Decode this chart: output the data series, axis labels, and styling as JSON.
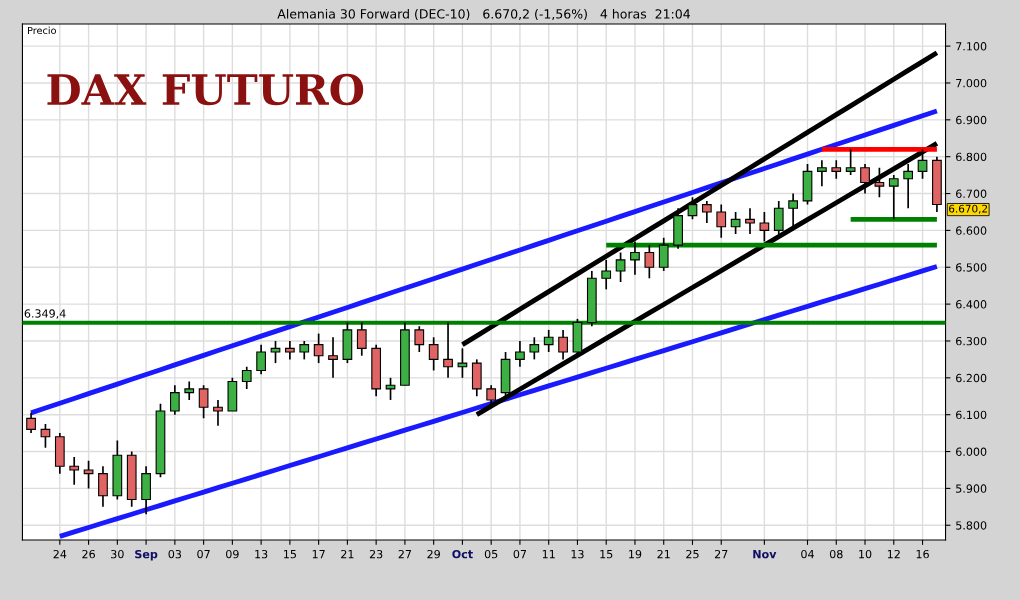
{
  "chart_data": {
    "type": "candlestick",
    "title": "Alemania 30 Forward (DEC-10)   6.670,2 (-1,56%)   4 horas  21:04",
    "ylabel": "Precio",
    "annotations": [
      "DAX FUTURO",
      "6.670,2"
    ],
    "categories": [
      null,
      null,
      "24",
      null,
      "26",
      null,
      "30",
      null,
      "Sep",
      null,
      "03",
      null,
      "07",
      null,
      "09",
      null,
      "13",
      null,
      "15",
      null,
      "17",
      null,
      "21",
      null,
      "23",
      null,
      "27",
      null,
      "29",
      null,
      "Oct",
      null,
      "05",
      null,
      "07",
      null,
      "11",
      null,
      "13",
      null,
      "15",
      null,
      "19",
      null,
      "21",
      null,
      "25",
      null,
      "27",
      null,
      null,
      "Nov",
      null,
      null,
      "04",
      null,
      "08",
      null,
      "10",
      null,
      "12",
      null,
      "16",
      null
    ],
    "ohlc": [
      [
        6090,
        6105,
        6050,
        6060
      ],
      [
        6060,
        6075,
        6010,
        6040
      ],
      [
        6040,
        6050,
        5940,
        5960
      ],
      [
        5960,
        5985,
        5910,
        5950
      ],
      [
        5950,
        5975,
        5900,
        5940
      ],
      [
        5940,
        5960,
        5850,
        5880
      ],
      [
        5880,
        6030,
        5870,
        5990
      ],
      [
        5990,
        6000,
        5850,
        5870
      ],
      [
        5870,
        5960,
        5830,
        5940
      ],
      [
        5940,
        6130,
        5930,
        6110
      ],
      [
        6110,
        6180,
        6100,
        6160
      ],
      [
        6160,
        6190,
        6140,
        6170
      ],
      [
        6170,
        6180,
        6090,
        6120
      ],
      [
        6120,
        6140,
        6070,
        6110
      ],
      [
        6110,
        6200,
        6110,
        6190
      ],
      [
        6190,
        6230,
        6170,
        6220
      ],
      [
        6220,
        6290,
        6210,
        6270
      ],
      [
        6270,
        6300,
        6240,
        6280
      ],
      [
        6280,
        6300,
        6250,
        6270
      ],
      [
        6270,
        6300,
        6250,
        6290
      ],
      [
        6290,
        6320,
        6240,
        6260
      ],
      [
        6260,
        6310,
        6200,
        6250
      ],
      [
        6250,
        6350,
        6240,
        6330
      ],
      [
        6330,
        6350,
        6260,
        6280
      ],
      [
        6280,
        6290,
        6150,
        6170
      ],
      [
        6170,
        6200,
        6140,
        6180
      ],
      [
        6180,
        6350,
        6180,
        6330
      ],
      [
        6330,
        6340,
        6270,
        6290
      ],
      [
        6290,
        6310,
        6220,
        6250
      ],
      [
        6250,
        6350,
        6200,
        6230
      ],
      [
        6230,
        6280,
        6200,
        6240
      ],
      [
        6240,
        6250,
        6150,
        6170
      ],
      [
        6170,
        6180,
        6120,
        6140
      ],
      [
        6160,
        6270,
        6150,
        6250
      ],
      [
        6250,
        6300,
        6230,
        6270
      ],
      [
        6270,
        6310,
        6250,
        6290
      ],
      [
        6290,
        6330,
        6270,
        6310
      ],
      [
        6310,
        6330,
        6250,
        6270
      ],
      [
        6270,
        6360,
        6260,
        6350
      ],
      [
        6350,
        6490,
        6340,
        6470
      ],
      [
        6470,
        6520,
        6440,
        6490
      ],
      [
        6490,
        6540,
        6460,
        6520
      ],
      [
        6520,
        6570,
        6480,
        6540
      ],
      [
        6540,
        6560,
        6470,
        6500
      ],
      [
        6500,
        6580,
        6490,
        6560
      ],
      [
        6560,
        6660,
        6550,
        6640
      ],
      [
        6640,
        6690,
        6630,
        6670
      ],
      [
        6670,
        6680,
        6620,
        6650
      ],
      [
        6650,
        6670,
        6580,
        6610
      ],
      [
        6610,
        6650,
        6590,
        6630
      ],
      [
        6630,
        6660,
        6590,
        6620
      ],
      [
        6620,
        6650,
        6570,
        6600
      ],
      [
        6600,
        6680,
        6590,
        6660
      ],
      [
        6660,
        6700,
        6600,
        6680
      ],
      [
        6680,
        6780,
        6670,
        6760
      ],
      [
        6760,
        6790,
        6720,
        6770
      ],
      [
        6770,
        6790,
        6740,
        6760
      ],
      [
        6760,
        6820,
        6750,
        6770
      ],
      [
        6770,
        6780,
        6700,
        6730
      ],
      [
        6730,
        6770,
        6690,
        6720
      ],
      [
        6720,
        6750,
        6630,
        6740
      ],
      [
        6740,
        6780,
        6660,
        6760
      ],
      [
        6760,
        6820,
        6740,
        6790
      ],
      [
        6790,
        6800,
        6650,
        6670.2
      ]
    ],
    "series": [
      {
        "type": "line",
        "color": "#1a1aff",
        "values": [
          6105,
          6118,
          6131,
          6144,
          6157,
          6170,
          6183,
          6196,
          6209,
          6222,
          6235,
          6248,
          6261,
          6274,
          6287,
          6300,
          6313,
          6326,
          6339,
          6352,
          6365,
          6378,
          6391,
          6404,
          6417,
          6430,
          6443,
          6456,
          6469,
          6482,
          6495,
          6508,
          6521,
          6534,
          6547,
          6560,
          6573,
          6586,
          6599,
          6612,
          6625,
          6638,
          6651,
          6664,
          6677,
          6690,
          6703,
          6716,
          6729,
          6742,
          6755,
          6768,
          6781,
          6794,
          6807,
          6820,
          6833,
          6846,
          6859,
          6872,
          6885,
          6898,
          6911,
          6924
        ]
      },
      {
        "type": "line",
        "color": "#1a1aff",
        "values": [
          null,
          null,
          5770,
          5782,
          5794,
          5806,
          5818,
          5830,
          5842,
          5854,
          5866,
          5878,
          5890,
          5902,
          5914,
          5926,
          5938,
          5950,
          5962,
          5974,
          5986,
          5998,
          6010,
          6022,
          6034,
          6046,
          6058,
          6070,
          6082,
          6094,
          6106,
          6118,
          6130,
          6142,
          6154,
          6166,
          6178,
          6190,
          6202,
          6214,
          6226,
          6238,
          6250,
          6262,
          6274,
          6286,
          6298,
          6310,
          6322,
          6334,
          6346,
          6358,
          6370,
          6382,
          6394,
          6406,
          6418,
          6430,
          6442,
          6454,
          6466,
          6478,
          6490,
          6502
        ]
      },
      {
        "type": "line",
        "color": "#000000",
        "values": [
          null,
          null,
          null,
          null,
          null,
          null,
          null,
          null,
          null,
          null,
          null,
          null,
          null,
          null,
          null,
          null,
          null,
          null,
          null,
          null,
          null,
          null,
          null,
          null,
          null,
          null,
          null,
          null,
          null,
          null,
          6290,
          6314,
          6338,
          6362,
          6386,
          6410,
          6434,
          6458,
          6482,
          6506,
          6530,
          6554,
          6578,
          6602,
          6626,
          6650,
          6674,
          6698,
          6722,
          6746,
          6770,
          6794,
          6818,
          6842,
          6866,
          6890,
          6914,
          6938,
          6962,
          6986,
          7010,
          7034,
          7058,
          7082
        ]
      },
      {
        "type": "line",
        "color": "#000000",
        "values": [
          null,
          null,
          null,
          null,
          null,
          null,
          null,
          null,
          null,
          null,
          null,
          null,
          null,
          null,
          null,
          null,
          null,
          null,
          null,
          null,
          null,
          null,
          null,
          null,
          null,
          null,
          null,
          null,
          null,
          null,
          null,
          6100,
          6123,
          6146,
          6169,
          6192,
          6215,
          6238,
          6261,
          6284,
          6307,
          6330,
          6353,
          6376,
          6399,
          6422,
          6445,
          6468,
          6491,
          6514,
          6537,
          6560,
          6583,
          6606,
          6629,
          6652,
          6675,
          6698,
          6721,
          6744,
          6767,
          6790,
          6813,
          6836
        ]
      },
      {
        "type": "line",
        "color": "#008000",
        "values": [
          null,
          null,
          null,
          null,
          null,
          null,
          null,
          null,
          null,
          null,
          null,
          null,
          null,
          null,
          null,
          null,
          null,
          null,
          null,
          null,
          null,
          null,
          null,
          null,
          null,
          null,
          null,
          null,
          null,
          null,
          null,
          null,
          null,
          null,
          null,
          null,
          null,
          null,
          null,
          null,
          6560,
          6560,
          6560,
          6560,
          6560,
          6560,
          6560,
          6560,
          6560,
          6560,
          6560,
          6560,
          6560,
          6560,
          6560,
          6560,
          6560,
          6560,
          6560,
          6560,
          6560,
          6560,
          6560,
          6560
        ]
      },
      {
        "type": "line",
        "color": "#008000",
        "values": [
          null,
          null,
          null,
          null,
          null,
          null,
          null,
          null,
          null,
          null,
          null,
          null,
          null,
          null,
          null,
          null,
          null,
          null,
          null,
          null,
          null,
          null,
          null,
          null,
          null,
          null,
          null,
          null,
          null,
          null,
          null,
          null,
          null,
          null,
          null,
          null,
          null,
          null,
          null,
          null,
          null,
          null,
          null,
          null,
          null,
          null,
          null,
          null,
          null,
          null,
          null,
          null,
          null,
          null,
          null,
          null,
          null,
          6630,
          6630,
          6630,
          6630,
          6630,
          6630,
          6630
        ]
      },
      {
        "type": "line",
        "color": "#ff0000",
        "values": [
          null,
          null,
          null,
          null,
          null,
          null,
          null,
          null,
          null,
          null,
          null,
          null,
          null,
          null,
          null,
          null,
          null,
          null,
          null,
          null,
          null,
          null,
          null,
          null,
          null,
          null,
          null,
          null,
          null,
          null,
          null,
          null,
          null,
          null,
          null,
          null,
          null,
          null,
          null,
          null,
          null,
          null,
          null,
          null,
          null,
          null,
          null,
          null,
          null,
          null,
          null,
          null,
          null,
          null,
          null,
          6820,
          6820,
          6820,
          6820,
          6820,
          6820,
          6820,
          6820,
          6820
        ]
      }
    ],
    "ref_lines": [
      {
        "axis": "y",
        "value": 6349.4,
        "label": "6.349,4",
        "color": "#008000"
      }
    ],
    "ylim": [
      5760,
      7160
    ],
    "yticks": [
      {
        "value": 5800,
        "label": "5.800"
      },
      {
        "value": 5900,
        "label": "5.900"
      },
      {
        "value": 6000,
        "label": "6.000"
      },
      {
        "value": 6100,
        "label": "6.100"
      },
      {
        "value": 6200,
        "label": "6.200"
      },
      {
        "value": 6300,
        "label": "6.300"
      },
      {
        "value": 6400,
        "label": "6.400"
      },
      {
        "value": 6500,
        "label": "6.500"
      },
      {
        "value": 6600,
        "label": "6.600"
      },
      {
        "value": 6700,
        "label": "6.700"
      },
      {
        "value": 6800,
        "label": "6.800"
      },
      {
        "value": 6900,
        "label": "6.900"
      },
      {
        "value": 7000,
        "label": "7.000"
      },
      {
        "value": 7100,
        "label": "7.100"
      }
    ],
    "grid": true,
    "legend": false
  }
}
